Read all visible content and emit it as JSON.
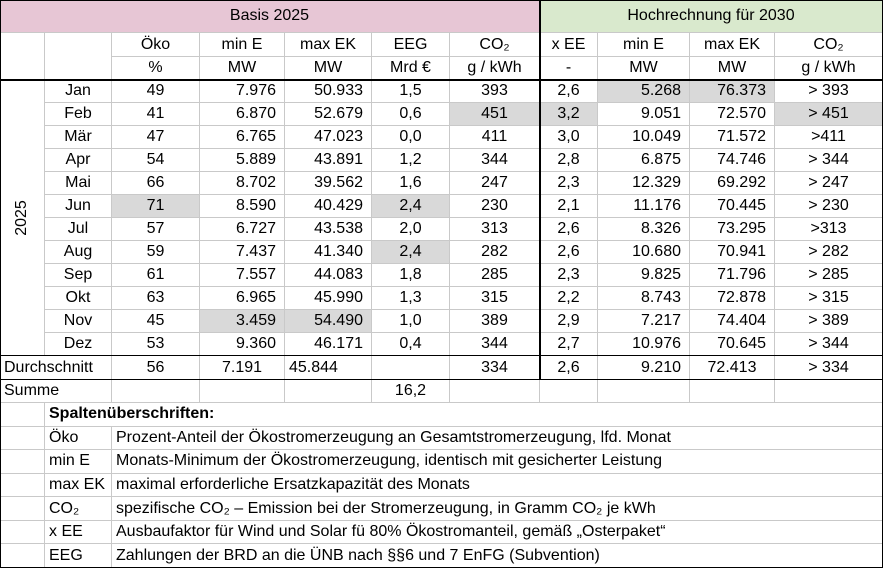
{
  "header": {
    "basis": "Basis 2025",
    "hochrechnung": "Hochrechnung für 2030",
    "columns": [
      "Öko",
      "min E",
      "max EK",
      "EEG",
      "CO₂",
      "x EE",
      "min E",
      "max EK",
      "CO₂"
    ],
    "units": [
      "%",
      "MW",
      "MW",
      "Mrd €",
      "g / kWh",
      "-",
      "MW",
      "MW",
      "g / kWh"
    ]
  },
  "table": {
    "year": "2025",
    "rows": [
      [
        "Jan",
        "49",
        "7.976",
        "50.933",
        "1,5",
        "393",
        "2,6",
        "5.268",
        "76.373",
        "> 393"
      ],
      [
        "Feb",
        "41",
        "6.870",
        "52.679",
        "0,6",
        "451",
        "3,2",
        "9.051",
        "72.570",
        "> 451"
      ],
      [
        "Mär",
        "47",
        "6.765",
        "47.023",
        "0,0",
        "411",
        "3,0",
        "10.049",
        "71.572",
        ">411"
      ],
      [
        "Apr",
        "54",
        "5.889",
        "43.891",
        "1,2",
        "344",
        "2,8",
        "6.875",
        "74.746",
        "> 344"
      ],
      [
        "Mai",
        "66",
        "8.702",
        "39.562",
        "1,6",
        "247",
        "2,3",
        "12.329",
        "69.292",
        "> 247"
      ],
      [
        "Jun",
        "71",
        "8.590",
        "40.429",
        "2,4",
        "230",
        "2,1",
        "11.176",
        "70.445",
        "> 230"
      ],
      [
        "Jul",
        "57",
        "6.727",
        "43.538",
        "2,0",
        "313",
        "2,6",
        "8.326",
        "73.295",
        ">313"
      ],
      [
        "Aug",
        "59",
        "7.437",
        "41.340",
        "2,4",
        "282",
        "2,6",
        "10.680",
        "70.941",
        "> 282"
      ],
      [
        "Sep",
        "61",
        "7.557",
        "44.083",
        "1,8",
        "285",
        "2,3",
        "9.825",
        "71.796",
        "> 285"
      ],
      [
        "Okt",
        "63",
        "6.965",
        "45.990",
        "1,3",
        "315",
        "2,2",
        "8.743",
        "72.878",
        "> 315"
      ],
      [
        "Nov",
        "45",
        "3.459",
        "54.490",
        "1,0",
        "389",
        "2,9",
        "7.217",
        "74.404",
        "> 389"
      ],
      [
        "Dez",
        "53",
        "9.360",
        "46.171",
        "0,4",
        "344",
        "2,7",
        "10.976",
        "70.645",
        "> 344"
      ]
    ],
    "average": {
      "label": "Durchschnitt",
      "oeko": "56",
      "min_e": "7.191",
      "max_ek": "45.844",
      "co2": "334",
      "x_ee": "2,6",
      "min_e_2030": "9.210",
      "max_ek_2030": "72.413",
      "co2_2030": "> 334"
    },
    "sum": {
      "label": "Summe",
      "eeg": "16,2"
    }
  },
  "legend": {
    "title": "Spaltenüberschriften:",
    "items": [
      {
        "term": "Öko",
        "text": "Prozent-Anteil der Ökostromerzeugung an Gesamtstromerzeugung, lfd. Monat"
      },
      {
        "term": "min E",
        "text": "Monats-Minimum der Ökostromerzeugung, identisch mit gesicherter Leistung"
      },
      {
        "term": "max EK",
        "text": "maximal erforderliche Ersatzkapazität des Monats"
      },
      {
        "term": "CO₂",
        "text": "spezifische CO₂ – Emission bei der Stromerzeugung, in Gramm CO₂ je kWh"
      },
      {
        "term": "x EE",
        "text": "Ausbaufaktor für Wind und Solar fü 80% Ökostromanteil, gemäß „Osterpaket“"
      },
      {
        "term": "EEG",
        "text": "Zahlungen der BRD an die ÜNB nach §§6 und 7 EnFG (Subvention)"
      }
    ]
  }
}
